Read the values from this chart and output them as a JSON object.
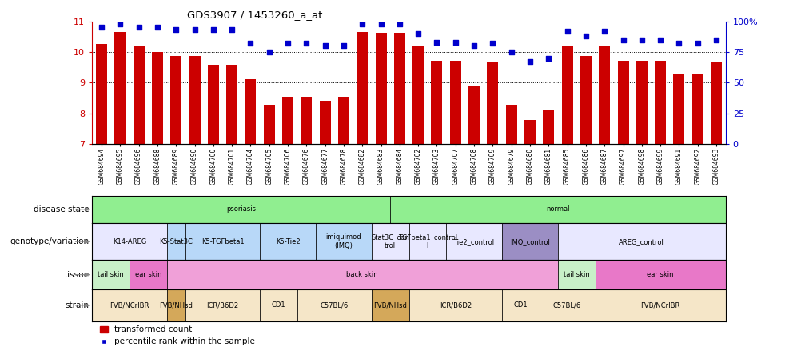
{
  "title": "GDS3907 / 1453260_a_at",
  "samples": [
    "GSM684694",
    "GSM684695",
    "GSM684696",
    "GSM684688",
    "GSM684689",
    "GSM684690",
    "GSM684700",
    "GSM684701",
    "GSM684704",
    "GSM684705",
    "GSM684706",
    "GSM684676",
    "GSM684677",
    "GSM684678",
    "GSM684682",
    "GSM684683",
    "GSM684684",
    "GSM684702",
    "GSM684703",
    "GSM684707",
    "GSM684708",
    "GSM684709",
    "GSM684679",
    "GSM684680",
    "GSM684681",
    "GSM684685",
    "GSM684686",
    "GSM684687",
    "GSM684697",
    "GSM684698",
    "GSM684699",
    "GSM684691",
    "GSM684692",
    "GSM684693"
  ],
  "bar_values": [
    10.27,
    10.65,
    10.22,
    9.99,
    9.88,
    9.88,
    9.58,
    9.58,
    9.12,
    8.28,
    8.55,
    8.55,
    8.42,
    8.55,
    10.65,
    10.62,
    10.62,
    10.18,
    9.72,
    9.72,
    8.88,
    9.65,
    8.28,
    7.78,
    8.12,
    10.22,
    9.88,
    10.22,
    9.72,
    9.72,
    9.72,
    9.28,
    9.28,
    9.68
  ],
  "dot_values": [
    95,
    98,
    95,
    95,
    93,
    93,
    93,
    93,
    82,
    75,
    82,
    82,
    80,
    80,
    98,
    98,
    98,
    90,
    83,
    83,
    80,
    82,
    75,
    67,
    70,
    92,
    88,
    92,
    85,
    85,
    85,
    82,
    82,
    85
  ],
  "ylim": [
    7,
    11
  ],
  "yticks": [
    7,
    8,
    9,
    10,
    11
  ],
  "y2lim": [
    0,
    100
  ],
  "y2ticks": [
    0,
    25,
    50,
    75,
    100
  ],
  "bar_color": "#cc0000",
  "dot_color": "#0000cc",
  "disease_state_segs": [
    {
      "label": "psoriasis",
      "start": 0,
      "end": 16,
      "color": "#90EE90"
    },
    {
      "label": "normal",
      "start": 16,
      "end": 34,
      "color": "#90EE90"
    }
  ],
  "genotype_variation": [
    {
      "label": "K14-AREG",
      "start": 0,
      "end": 4,
      "color": "#e8e8ff"
    },
    {
      "label": "K5-Stat3C",
      "start": 4,
      "end": 5,
      "color": "#b8d8f8"
    },
    {
      "label": "K5-TGFbeta1",
      "start": 5,
      "end": 9,
      "color": "#b8d8f8"
    },
    {
      "label": "K5-Tie2",
      "start": 9,
      "end": 12,
      "color": "#b8d8f8"
    },
    {
      "label": "imiquimod\n(IMQ)",
      "start": 12,
      "end": 15,
      "color": "#b8d8f8"
    },
    {
      "label": "Stat3C_con\ntrol",
      "start": 15,
      "end": 17,
      "color": "#e8e8ff"
    },
    {
      "label": "TGFbeta1_control\nl",
      "start": 17,
      "end": 19,
      "color": "#e8e8ff"
    },
    {
      "label": "Tie2_control",
      "start": 19,
      "end": 22,
      "color": "#e8e8ff"
    },
    {
      "label": "IMQ_control",
      "start": 22,
      "end": 25,
      "color": "#9b8ec4"
    },
    {
      "label": "AREG_control",
      "start": 25,
      "end": 34,
      "color": "#e8e8ff"
    }
  ],
  "tissue": [
    {
      "label": "tail skin",
      "start": 0,
      "end": 2,
      "color": "#c8f0c8"
    },
    {
      "label": "ear skin",
      "start": 2,
      "end": 4,
      "color": "#e878c8"
    },
    {
      "label": "back skin",
      "start": 4,
      "end": 25,
      "color": "#f0a0d8"
    },
    {
      "label": "tail skin",
      "start": 25,
      "end": 27,
      "color": "#c8f0c8"
    },
    {
      "label": "ear skin",
      "start": 27,
      "end": 34,
      "color": "#e878c8"
    }
  ],
  "strain": [
    {
      "label": "FVB/NCrIBR",
      "start": 0,
      "end": 4,
      "color": "#f5e6c8"
    },
    {
      "label": "FVB/NHsd",
      "start": 4,
      "end": 5,
      "color": "#d4a85a"
    },
    {
      "label": "ICR/B6D2",
      "start": 5,
      "end": 9,
      "color": "#f5e6c8"
    },
    {
      "label": "CD1",
      "start": 9,
      "end": 11,
      "color": "#f5e6c8"
    },
    {
      "label": "C57BL/6",
      "start": 11,
      "end": 15,
      "color": "#f5e6c8"
    },
    {
      "label": "FVB/NHsd",
      "start": 15,
      "end": 17,
      "color": "#d4a85a"
    },
    {
      "label": "ICR/B6D2",
      "start": 17,
      "end": 22,
      "color": "#f5e6c8"
    },
    {
      "label": "CD1",
      "start": 22,
      "end": 24,
      "color": "#f5e6c8"
    },
    {
      "label": "C57BL/6",
      "start": 24,
      "end": 27,
      "color": "#f5e6c8"
    },
    {
      "label": "FVB/NCrIBR",
      "start": 27,
      "end": 34,
      "color": "#f5e6c8"
    }
  ],
  "legend_labels": [
    "transformed count",
    "percentile rank within the sample"
  ]
}
